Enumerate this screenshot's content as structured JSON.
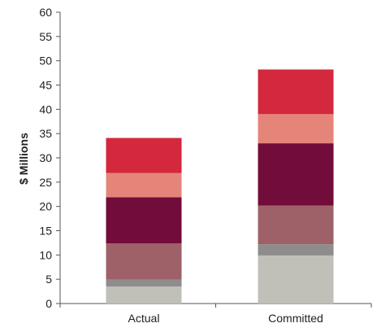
{
  "chart_data": {
    "type": "bar",
    "stacked": true,
    "title": "",
    "xlabel": "",
    "ylabel": "$ Millions",
    "categories": [
      "Actual",
      "Committed"
    ],
    "ylim": [
      0,
      60
    ],
    "yticks": [
      0,
      5,
      10,
      15,
      20,
      25,
      30,
      35,
      40,
      45,
      50,
      55,
      60
    ],
    "grid": false,
    "legend": "none",
    "series": [
      {
        "color": "#c0c0b8",
        "values": [
          3.5,
          9.9
        ]
      },
      {
        "color": "#8e8c8c",
        "values": [
          1.4,
          2.3
        ]
      },
      {
        "color": "#9e6168",
        "values": [
          7.5,
          8.0
        ]
      },
      {
        "color": "#720c3a",
        "values": [
          9.5,
          12.8
        ]
      },
      {
        "color": "#e5857a",
        "values": [
          5.0,
          6.0
        ]
      },
      {
        "color": "#d3283d",
        "values": [
          7.2,
          9.2
        ]
      }
    ],
    "totals": [
      34.1,
      48.2
    ]
  }
}
